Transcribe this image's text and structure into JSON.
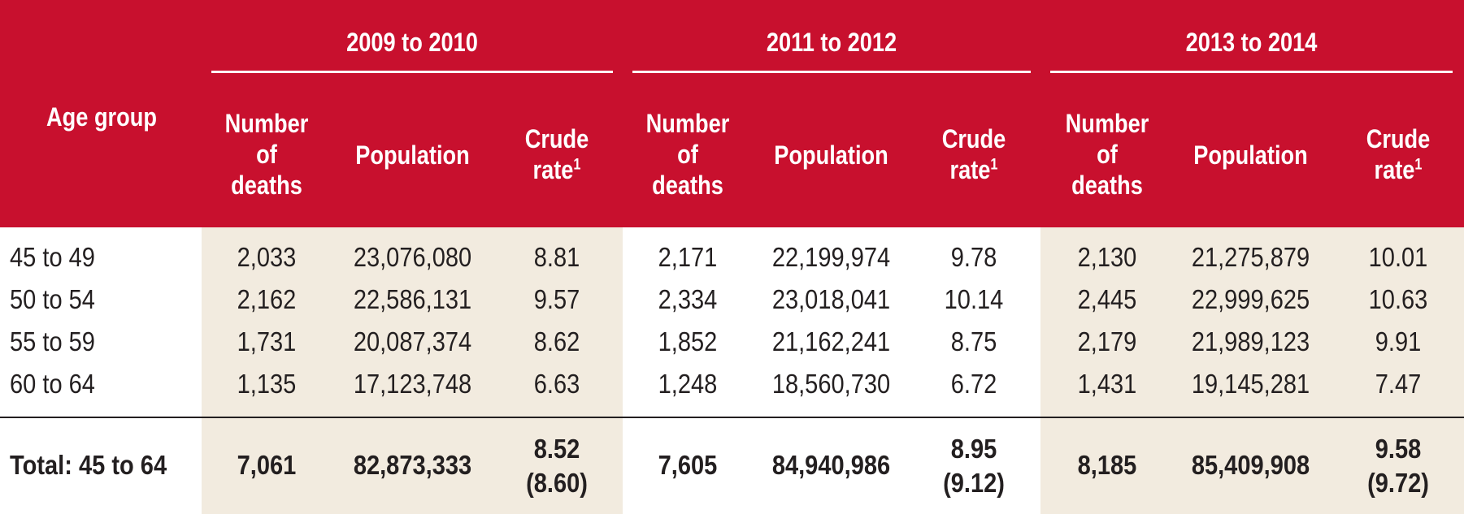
{
  "colors": {
    "header_bg": "#c8102e",
    "shade_bg": "#f2ebdf",
    "text": "#231f20"
  },
  "header": {
    "age_group": "Age group",
    "groups": [
      {
        "label": "2009 to 2010"
      },
      {
        "label": "2011 to 2012"
      },
      {
        "label": "2013 to 2014"
      }
    ],
    "subcols": {
      "deaths_1": "Number",
      "deaths_2": "of",
      "deaths_3": "deaths",
      "population": "Population",
      "rate_1": "Crude",
      "rate_2": "rate",
      "rate_sup": "1"
    }
  },
  "rows": [
    {
      "age": "45 to 49",
      "c": [
        "2,033",
        "23,076,080",
        "8.81",
        "2,171",
        "22,199,974",
        "9.78",
        "2,130",
        "21,275,879",
        "10.01"
      ]
    },
    {
      "age": "50 to 54",
      "c": [
        "2,162",
        "22,586,131",
        "9.57",
        "2,334",
        "23,018,041",
        "10.14",
        "2,445",
        "22,999,625",
        "10.63"
      ]
    },
    {
      "age": "55 to 59",
      "c": [
        "1,731",
        "20,087,374",
        "8.62",
        "1,852",
        "21,162,241",
        "8.75",
        "2,179",
        "21,989,123",
        "9.91"
      ]
    },
    {
      "age": "60 to 64",
      "c": [
        "1,135",
        "17,123,748",
        "6.63",
        "1,248",
        "18,560,730",
        "6.72",
        "1,431",
        "19,145,281",
        "7.47"
      ]
    }
  ],
  "total": {
    "label": "Total: 45 to 64",
    "deaths": [
      "7,061",
      "7,605",
      "8,185"
    ],
    "population": [
      "82,873,333",
      "84,940,986",
      "85,409,908"
    ],
    "rate": [
      "8.52",
      "8.95",
      "9.58"
    ],
    "rate_adj": [
      "(8.60)",
      "(9.12)",
      "(9.72)"
    ]
  }
}
